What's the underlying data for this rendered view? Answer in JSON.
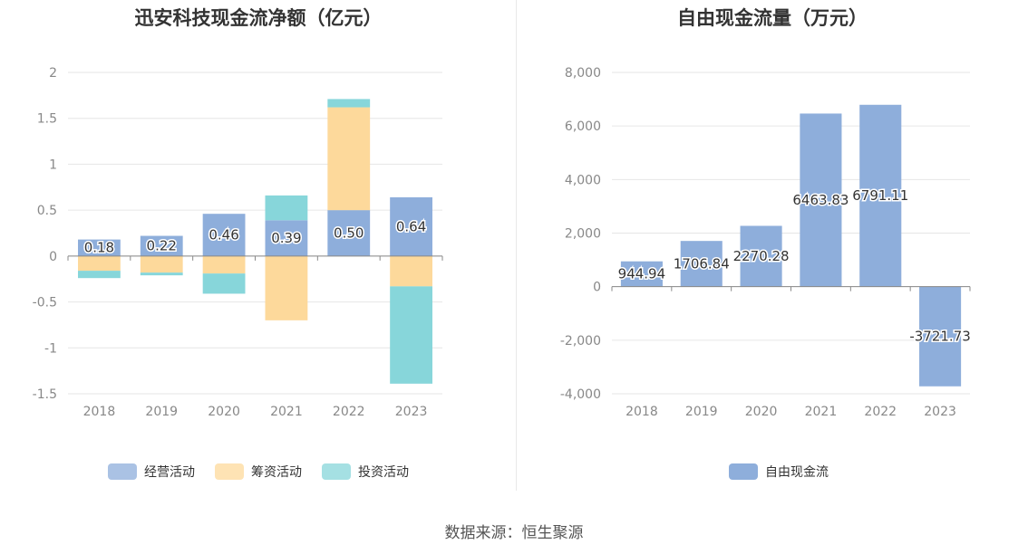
{
  "footer": {
    "source": "数据来源：恒生聚源"
  },
  "chart_data": [
    {
      "type": "bar",
      "stacked": true,
      "title": "迅安科技现金流净额（亿元）",
      "categories": [
        "2018",
        "2019",
        "2020",
        "2021",
        "2022",
        "2023"
      ],
      "ylim": [
        -1.5,
        2
      ],
      "yticks": [
        2,
        1.5,
        1,
        0.5,
        0,
        -0.5,
        -1,
        -1.5
      ],
      "ytick_labels": [
        "2",
        "1.5",
        "1",
        "0.5",
        "0",
        "-0.5",
        "-1",
        "-1.5"
      ],
      "grid": true,
      "legend_position": "bottom",
      "series": [
        {
          "name": "经营活动",
          "color": "#8eaedb",
          "values": [
            0.18,
            0.22,
            0.46,
            0.39,
            0.5,
            0.64
          ],
          "labels": [
            "0.18",
            "0.22",
            "0.46",
            "0.39",
            "0.50",
            "0.64"
          ]
        },
        {
          "name": "筹资活动",
          "color": "#fdd99b",
          "values": [
            -0.16,
            -0.18,
            -0.19,
            -0.7,
            1.12,
            -0.33
          ]
        },
        {
          "name": "投资活动",
          "color": "#87d6da",
          "values": [
            -0.08,
            -0.03,
            -0.22,
            0.27,
            0.09,
            -1.06
          ]
        }
      ]
    },
    {
      "type": "bar",
      "title": "自由现金流量（万元）",
      "categories": [
        "2018",
        "2019",
        "2020",
        "2021",
        "2022",
        "2023"
      ],
      "ylim": [
        -4000,
        8000
      ],
      "yticks": [
        8000,
        6000,
        4000,
        2000,
        0,
        -2000,
        -4000
      ],
      "ytick_labels": [
        "8,000",
        "6,000",
        "4,000",
        "2,000",
        "0",
        "-2,000",
        "-4,000"
      ],
      "grid": true,
      "legend_position": "bottom",
      "series": [
        {
          "name": "自由现金流",
          "color": "#8eaedb",
          "values": [
            944.94,
            1706.84,
            2270.28,
            6463.83,
            6791.11,
            -3721.73
          ],
          "labels": [
            "944.94",
            "1706.84",
            "2270.28",
            "6463.83",
            "6791.11",
            "-3721.73"
          ]
        }
      ]
    }
  ]
}
